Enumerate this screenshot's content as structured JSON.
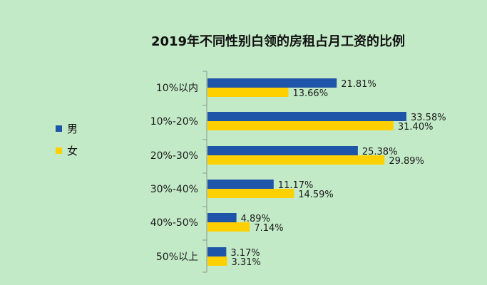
{
  "chart_data": {
    "type": "bar",
    "orientation": "horizontal",
    "title": "2019年不同性别白领的房租占月工资的比例",
    "categories": [
      "10%以内",
      "10%-20%",
      "20%-30%",
      "30%-40%",
      "40%-50%",
      "50%以上"
    ],
    "series": [
      {
        "name": "男",
        "color": "#1f55a8",
        "values": [
          21.81,
          33.58,
          25.38,
          11.17,
          4.89,
          3.17
        ],
        "labels": [
          "21.81%",
          "33.58%",
          "25.38%",
          "11.17%",
          "4.89%",
          "3.17%"
        ]
      },
      {
        "name": "女",
        "color": "#ffd000",
        "values": [
          13.66,
          31.4,
          29.89,
          14.59,
          7.14,
          3.31
        ],
        "labels": [
          "13.66%",
          "31.40%",
          "29.89%",
          "14.59%",
          "7.14%",
          "3.31%"
        ]
      }
    ],
    "xlim": [
      0,
      40
    ],
    "xlabel": "",
    "ylabel": "",
    "legend_position": "left",
    "grid": false
  },
  "colors": {
    "background": "#c3eac7",
    "axis": "#8a9a8c"
  }
}
